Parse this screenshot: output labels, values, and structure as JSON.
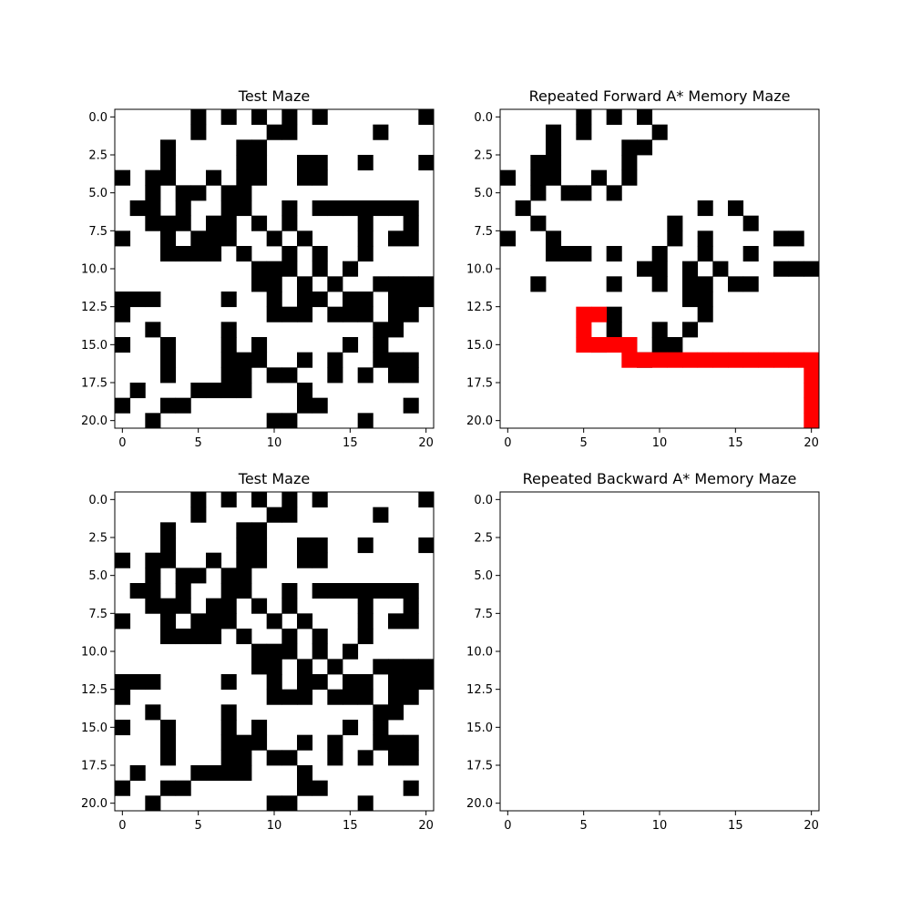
{
  "colors": {
    "wall": "#000000",
    "open": "#ffffff",
    "path": "#ff0000"
  },
  "maze_rows": [
    ".....#.#.#.#.#......#",
    ".....#....##.....#...",
    "...#....##...........",
    "...#....##..##..#...#",
    "#.##..#.##..##.......",
    "..#.##.##............",
    ".##.#..##..#.#######.",
    "..###.##.#.#....#..#.",
    "#..#.###..#.#...#.##.",
    "...####.#..#.#..#....",
    ".........###.#.#.....",
    ".........##.#.#..####",
    "###....#..#.##.##.###",
    "#.........###.###.##.",
    "..#....#.........##..",
    "#..#...#.#.....#.#...",
    "...#...###..#.#..###.",
    "...#...##.##..#.#.##.",
    ".#...####...#........",
    "#..##.......##.....#.",
    "..#.......##....#...."
  ],
  "chart_data": [
    {
      "type": "heatmap",
      "title": "Test Maze",
      "grid": "maze_rows",
      "xlim": [
        -0.5,
        20.5
      ],
      "ylim": [
        20.5,
        -0.5
      ],
      "xticks": [
        0,
        5,
        10,
        15,
        20
      ],
      "xtick_labels": [
        "0",
        "5",
        "10",
        "15",
        "20"
      ],
      "yticks": [
        0,
        2.5,
        5,
        7.5,
        10,
        12.5,
        15,
        17.5,
        20
      ],
      "ytick_labels": [
        "0.0",
        "2.5",
        "5.0",
        "7.5",
        "10.0",
        "12.5",
        "15.0",
        "17.5",
        "20.0"
      ]
    },
    {
      "type": "heatmap",
      "title": "Repeated Forward A* Memory Maze",
      "walls": [
        [
          0,
          5
        ],
        [
          0,
          7
        ],
        [
          0,
          9
        ],
        [
          1,
          3
        ],
        [
          1,
          5
        ],
        [
          1,
          10
        ],
        [
          2,
          3
        ],
        [
          2,
          8
        ],
        [
          2,
          9
        ],
        [
          3,
          2
        ],
        [
          3,
          3
        ],
        [
          3,
          8
        ],
        [
          4,
          0
        ],
        [
          4,
          2
        ],
        [
          4,
          3
        ],
        [
          4,
          6
        ],
        [
          4,
          8
        ],
        [
          5,
          2
        ],
        [
          5,
          4
        ],
        [
          5,
          5
        ],
        [
          5,
          7
        ],
        [
          6,
          1
        ],
        [
          6,
          13
        ],
        [
          6,
          15
        ],
        [
          7,
          2
        ],
        [
          7,
          11
        ],
        [
          7,
          16
        ],
        [
          8,
          0
        ],
        [
          8,
          3
        ],
        [
          8,
          11
        ],
        [
          8,
          13
        ],
        [
          8,
          18
        ],
        [
          8,
          19
        ],
        [
          9,
          3
        ],
        [
          9,
          4
        ],
        [
          9,
          5
        ],
        [
          9,
          7
        ],
        [
          9,
          10
        ],
        [
          9,
          13
        ],
        [
          9,
          16
        ],
        [
          10,
          9
        ],
        [
          10,
          10
        ],
        [
          10,
          12
        ],
        [
          10,
          14
        ],
        [
          10,
          18
        ],
        [
          10,
          19
        ],
        [
          10,
          20
        ],
        [
          11,
          2
        ],
        [
          11,
          7
        ],
        [
          11,
          10
        ],
        [
          11,
          12
        ],
        [
          11,
          13
        ],
        [
          11,
          15
        ],
        [
          11,
          16
        ],
        [
          12,
          12
        ],
        [
          12,
          13
        ],
        [
          13,
          7
        ],
        [
          13,
          13
        ],
        [
          14,
          7
        ],
        [
          14,
          10
        ],
        [
          14,
          12
        ],
        [
          15,
          6
        ],
        [
          15,
          8
        ],
        [
          15,
          10
        ],
        [
          15,
          11
        ],
        [
          16,
          9
        ]
      ],
      "path": [
        [
          13,
          5
        ],
        [
          13,
          6
        ],
        [
          14,
          5
        ],
        [
          15,
          5
        ],
        [
          15,
          6
        ],
        [
          15,
          7
        ],
        [
          15,
          8
        ],
        [
          16,
          8
        ],
        [
          16,
          9
        ],
        [
          16,
          10
        ],
        [
          16,
          11
        ],
        [
          16,
          12
        ],
        [
          16,
          13
        ],
        [
          16,
          14
        ],
        [
          16,
          15
        ],
        [
          16,
          16
        ],
        [
          16,
          17
        ],
        [
          16,
          18
        ],
        [
          16,
          19
        ],
        [
          16,
          20
        ],
        [
          17,
          20
        ],
        [
          18,
          20
        ],
        [
          19,
          20
        ],
        [
          20,
          20
        ]
      ],
      "xlim": [
        -0.5,
        20.5
      ],
      "ylim": [
        20.5,
        -0.5
      ],
      "xticks": [
        0,
        5,
        10,
        15,
        20
      ],
      "xtick_labels": [
        "0",
        "5",
        "10",
        "15",
        "20"
      ],
      "yticks": [
        0,
        2.5,
        5,
        7.5,
        10,
        12.5,
        15,
        17.5,
        20
      ],
      "ytick_labels": [
        "0.0",
        "2.5",
        "5.0",
        "7.5",
        "10.0",
        "12.5",
        "15.0",
        "17.5",
        "20.0"
      ]
    },
    {
      "type": "heatmap",
      "title": "Test Maze",
      "grid": "maze_rows",
      "xlim": [
        -0.5,
        20.5
      ],
      "ylim": [
        20.5,
        -0.5
      ],
      "xticks": [
        0,
        5,
        10,
        15,
        20
      ],
      "xtick_labels": [
        "0",
        "5",
        "10",
        "15",
        "20"
      ],
      "yticks": [
        0,
        2.5,
        5,
        7.5,
        10,
        12.5,
        15,
        17.5,
        20
      ],
      "ytick_labels": [
        "0.0",
        "2.5",
        "5.0",
        "7.5",
        "10.0",
        "12.5",
        "15.0",
        "17.5",
        "20.0"
      ]
    },
    {
      "type": "heatmap",
      "title": "Repeated Backward A* Memory Maze",
      "walls": [],
      "path": [],
      "xlim": [
        -0.5,
        20.5
      ],
      "ylim": [
        20.5,
        -0.5
      ],
      "xticks": [
        0,
        5,
        10,
        15,
        20
      ],
      "xtick_labels": [
        "0",
        "5",
        "10",
        "15",
        "20"
      ],
      "yticks": [
        0,
        2.5,
        5,
        7.5,
        10,
        12.5,
        15,
        17.5,
        20
      ],
      "ytick_labels": [
        "0.0",
        "2.5",
        "5.0",
        "7.5",
        "10.0",
        "12.5",
        "15.0",
        "17.5",
        "20.0"
      ]
    }
  ]
}
